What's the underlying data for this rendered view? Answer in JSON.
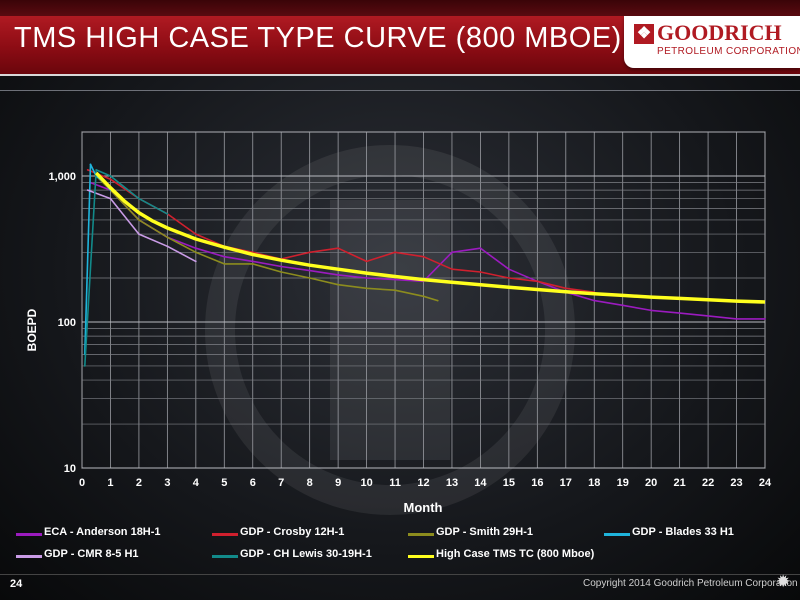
{
  "slide": {
    "title": "TMS HIGH CASE TYPE CURVE (800 MBOE)",
    "logo_name": "GOODRICH",
    "logo_sub": "PETROLEUM CORPORATION",
    "page_number": "24",
    "copyright": "Copyright 2014 Goodrich Petroleum Corporation"
  },
  "chart_data": {
    "type": "line",
    "xlabel": "Month",
    "ylabel": "BOEPD",
    "x_scale": "linear",
    "y_scale": "log",
    "xlim": [
      0,
      24
    ],
    "ylim": [
      10,
      2000
    ],
    "x_ticks": [
      "0",
      "1",
      "2",
      "3",
      "4",
      "5",
      "6",
      "7",
      "8",
      "9",
      "10",
      "11",
      "12",
      "13",
      "14",
      "15",
      "16",
      "17",
      "18",
      "19",
      "20",
      "21",
      "22",
      "23",
      "24"
    ],
    "y_ticks": [
      {
        "value": 1000,
        "label": "1,000"
      },
      {
        "value": 100,
        "label": "100"
      },
      {
        "value": 10,
        "label": "10"
      }
    ],
    "grid": true,
    "legend_position": "bottom",
    "series": [
      {
        "name": "ECA - Anderson 18H-1",
        "color": "#9b1bbf",
        "x": [
          0.3,
          1,
          2,
          3,
          4,
          5,
          6,
          7,
          8,
          9,
          10,
          11,
          12,
          13,
          14,
          15,
          16,
          17,
          18,
          19,
          20,
          21,
          22,
          23,
          24
        ],
        "y": [
          900,
          800,
          500,
          380,
          320,
          280,
          260,
          240,
          225,
          210,
          200,
          195,
          190,
          300,
          320,
          230,
          190,
          160,
          140,
          130,
          120,
          115,
          110,
          105,
          105
        ]
      },
      {
        "name": "GDP - Crosby 12H-1",
        "color": "#d0202e",
        "x": [
          0.2,
          1,
          2,
          3,
          4,
          5,
          6,
          7,
          8,
          9,
          10,
          11,
          12,
          13,
          14,
          15,
          16,
          17,
          18
        ],
        "y": [
          1100,
          950,
          700,
          550,
          400,
          330,
          300,
          270,
          300,
          320,
          260,
          300,
          280,
          230,
          220,
          200,
          190,
          170,
          160
        ]
      },
      {
        "name": "GDP - Smith 29H-1",
        "color": "#8c8c1e",
        "x": [
          0.5,
          1,
          2,
          3,
          4,
          5,
          6,
          7,
          8,
          9,
          10,
          11,
          12,
          12.5
        ],
        "y": [
          1000,
          800,
          500,
          380,
          300,
          250,
          250,
          220,
          200,
          180,
          170,
          165,
          150,
          140
        ]
      },
      {
        "name": "GDP - Blades 33 H1",
        "color": "#1fb4dc",
        "x": [
          0.1,
          0.3,
          0.5,
          0.8,
          1
        ],
        "y": [
          60,
          1200,
          1000,
          900,
          800
        ]
      },
      {
        "name": "GDP - CMR 8-5 H1",
        "color": "#c99be6",
        "x": [
          0.2,
          1,
          2,
          3,
          4
        ],
        "y": [
          800,
          700,
          400,
          330,
          260
        ]
      },
      {
        "name": "GDP - CH Lewis 30-19H-1",
        "color": "#128a8a",
        "x": [
          0.1,
          0.5,
          1,
          2,
          3
        ],
        "y": [
          50,
          1100,
          1000,
          700,
          550
        ]
      },
      {
        "name": "High Case TMS TC (800 Mboe)",
        "color": "#ffff1e",
        "x": [
          0.5,
          1,
          1.5,
          2,
          2.5,
          3,
          4,
          5,
          6,
          7,
          8,
          9,
          10,
          11,
          12,
          13,
          14,
          15,
          16,
          17,
          18,
          19,
          20,
          21,
          22,
          23,
          24
        ],
        "y": [
          1050,
          830,
          670,
          560,
          490,
          440,
          370,
          325,
          290,
          265,
          245,
          230,
          216,
          205,
          195,
          187,
          180,
          173,
          167,
          161,
          156,
          152,
          148,
          145,
          142,
          139,
          137
        ]
      }
    ]
  }
}
